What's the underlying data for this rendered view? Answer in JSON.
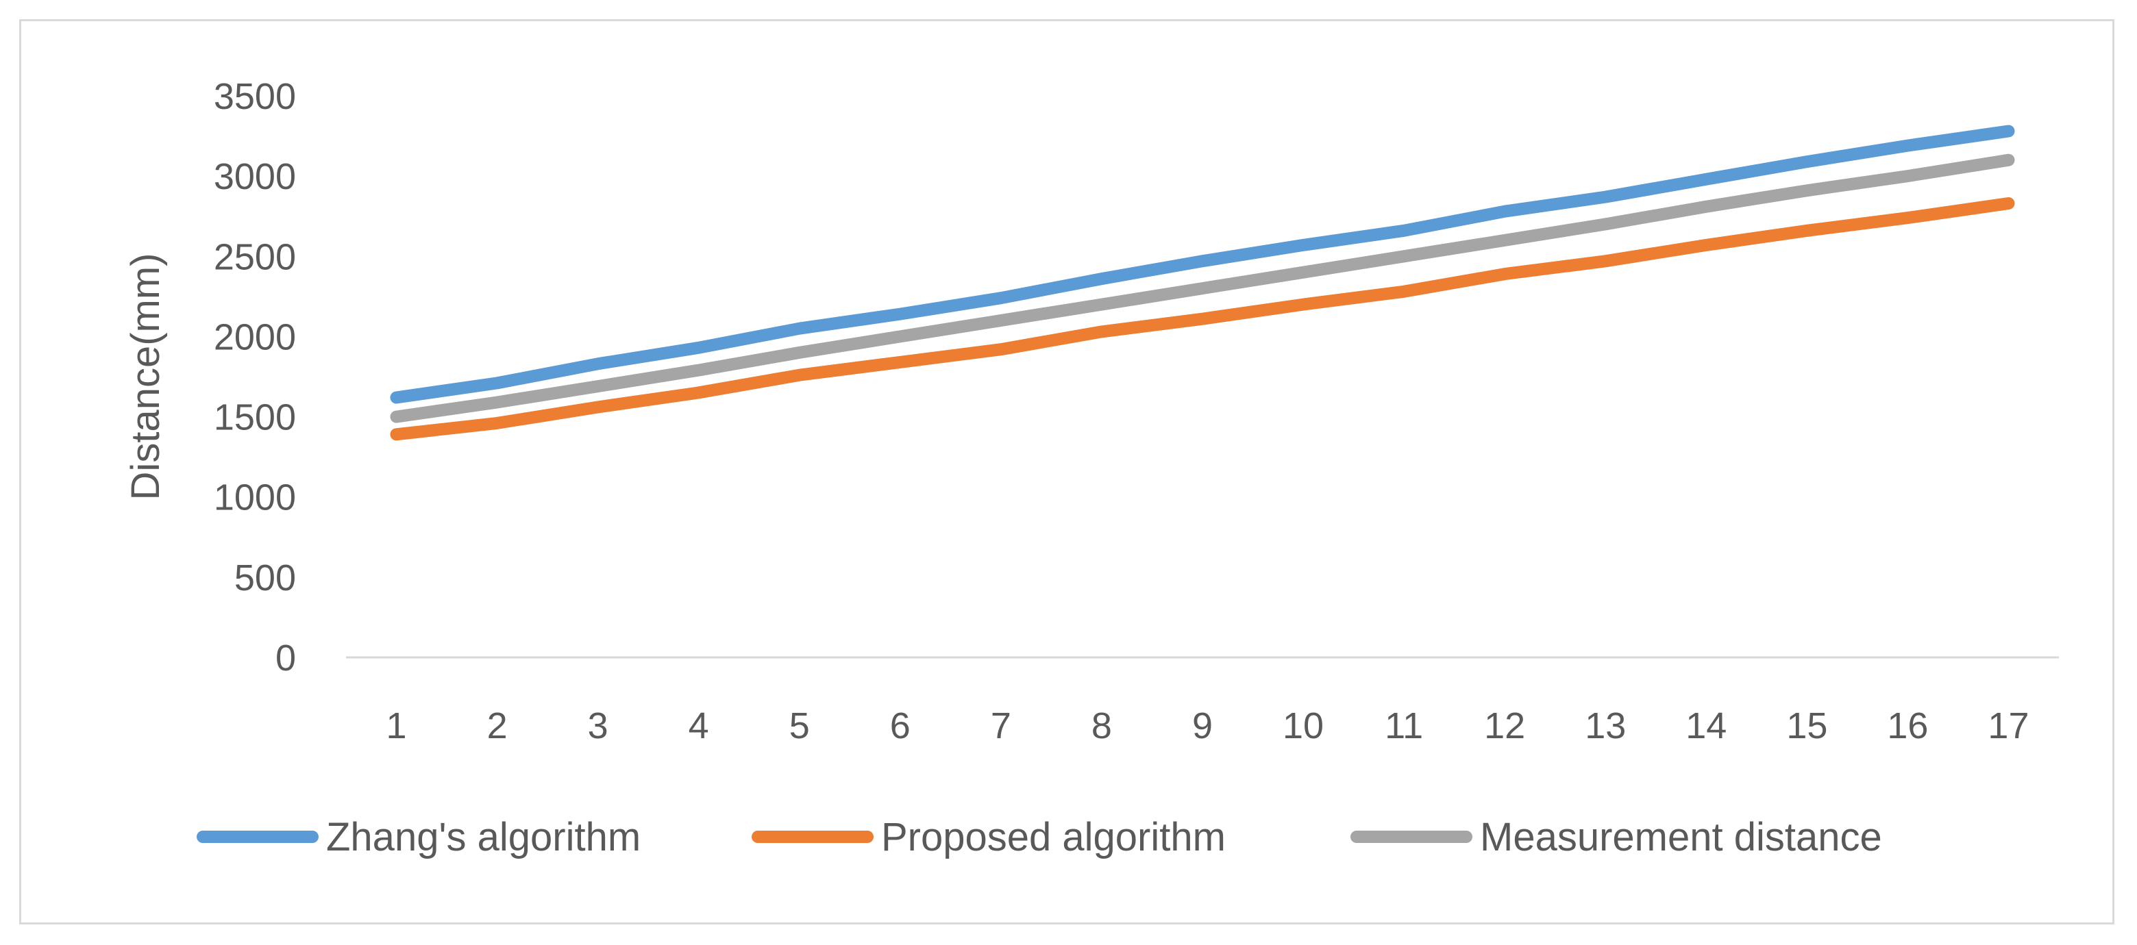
{
  "chart_data": {
    "type": "line",
    "title": "",
    "xlabel": "",
    "ylabel": "Distance(mm)",
    "categories": [
      "1",
      "2",
      "3",
      "4",
      "5",
      "6",
      "7",
      "8",
      "9",
      "10",
      "11",
      "12",
      "13",
      "14",
      "15",
      "16",
      "17"
    ],
    "ylim": [
      0,
      3500
    ],
    "yticks": [
      "0",
      "500",
      "1000",
      "1500",
      "2000",
      "2500",
      "3000",
      "3500"
    ],
    "grid": false,
    "legend_position": "bottom",
    "series": [
      {
        "name": "Zhang's algorithm",
        "color": "#5b9bd5",
        "values": [
          1620,
          1710,
          1830,
          1930,
          2050,
          2140,
          2240,
          2360,
          2470,
          2570,
          2660,
          2780,
          2870,
          2980,
          3090,
          3190,
          3280
        ]
      },
      {
        "name": "Proposed algorithm",
        "color": "#ed7d31",
        "values": [
          1390,
          1460,
          1560,
          1650,
          1760,
          1840,
          1920,
          2030,
          2110,
          2200,
          2280,
          2390,
          2470,
          2570,
          2660,
          2740,
          2830
        ]
      },
      {
        "name": "Measurement distance",
        "color": "#a5a5a5",
        "values": [
          1500,
          1590,
          1690,
          1790,
          1900,
          2000,
          2100,
          2200,
          2300,
          2400,
          2500,
          2600,
          2700,
          2810,
          2910,
          3000,
          3100
        ]
      }
    ]
  }
}
